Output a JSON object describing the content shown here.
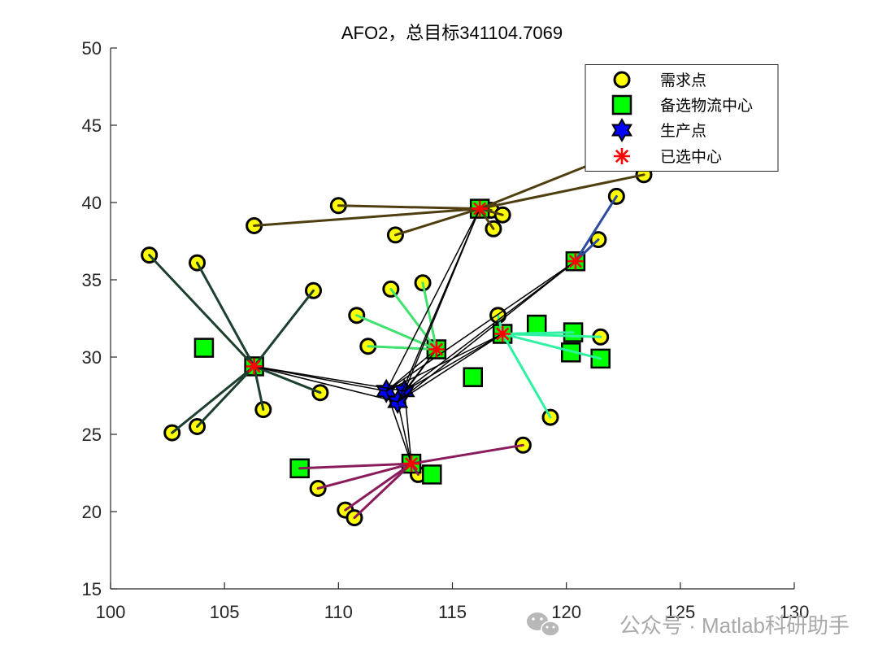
{
  "chart_data": {
    "type": "scatter",
    "title": "AFO2，总目标341104.7069",
    "xlim": [
      100,
      130
    ],
    "ylim": [
      15,
      50
    ],
    "xticks": [
      100,
      105,
      110,
      115,
      120,
      125,
      130
    ],
    "yticks": [
      15,
      20,
      25,
      30,
      35,
      40,
      45,
      50
    ],
    "grid": false,
    "box": false,
    "legend_position": "top-right",
    "axis_color": "#262626",
    "series": [
      {
        "name": "需求点",
        "marker": "circle",
        "color": "#ffff00",
        "edge_color": "#000000",
        "points": [
          [
            101.7,
            36.6
          ],
          [
            103.8,
            36.1
          ],
          [
            108.9,
            34.3
          ],
          [
            106.3,
            38.5
          ],
          [
            110.0,
            39.8
          ],
          [
            112.5,
            37.9
          ],
          [
            116.7,
            39.5
          ],
          [
            117.2,
            39.2
          ],
          [
            116.8,
            38.3
          ],
          [
            122.2,
            40.4
          ],
          [
            123.4,
            41.8
          ],
          [
            123.0,
            43.6
          ],
          [
            121.4,
            37.6
          ],
          [
            121.5,
            31.3
          ],
          [
            117.0,
            32.7
          ],
          [
            119.3,
            26.1
          ],
          [
            113.7,
            34.8
          ],
          [
            112.3,
            34.4
          ],
          [
            110.8,
            32.7
          ],
          [
            111.3,
            30.7
          ],
          [
            109.2,
            27.7
          ],
          [
            106.7,
            26.6
          ],
          [
            103.8,
            25.5
          ],
          [
            102.7,
            25.1
          ],
          [
            118.1,
            24.3
          ],
          [
            109.1,
            21.5
          ],
          [
            110.3,
            20.1
          ],
          [
            110.7,
            19.6
          ],
          [
            113.5,
            22.4
          ],
          [
            108.3,
            22.8
          ],
          [
            121.5,
            29.9
          ],
          [
            120.3,
            31.6
          ]
        ]
      },
      {
        "name": "备选物流中心",
        "marker": "square",
        "color": "#00ff00",
        "edge_color": "#000000",
        "points": [
          [
            104.1,
            30.6
          ],
          [
            106.3,
            29.4
          ],
          [
            108.3,
            22.8
          ],
          [
            113.2,
            23.1
          ],
          [
            114.1,
            22.4
          ],
          [
            114.3,
            30.5
          ],
          [
            115.9,
            28.7
          ],
          [
            116.2,
            39.6
          ],
          [
            117.2,
            31.5
          ],
          [
            118.7,
            32.1
          ],
          [
            120.3,
            31.6
          ],
          [
            120.2,
            30.3
          ],
          [
            121.5,
            29.9
          ],
          [
            120.4,
            36.2
          ]
        ]
      },
      {
        "name": "生产点",
        "marker": "hexagram",
        "color": "#0000ff",
        "edge_color": "#000000",
        "points": [
          [
            112.1,
            27.8
          ],
          [
            112.9,
            27.8
          ],
          [
            112.6,
            27.1
          ]
        ]
      },
      {
        "name": "已选中心",
        "marker": "asterisk",
        "color": "#ff0000",
        "points": [
          [
            106.3,
            29.4
          ],
          [
            113.2,
            23.1
          ],
          [
            114.3,
            30.5
          ],
          [
            116.2,
            39.6
          ],
          [
            117.2,
            31.5
          ],
          [
            120.4,
            36.2
          ]
        ]
      }
    ],
    "assignments": [
      {
        "center": [
          106.3,
          29.4
        ],
        "color": "#1d3f2e",
        "demands": [
          [
            101.7,
            36.6
          ],
          [
            103.8,
            36.1
          ],
          [
            108.9,
            34.3
          ],
          [
            109.2,
            27.7
          ],
          [
            106.7,
            26.6
          ],
          [
            103.8,
            25.5
          ],
          [
            102.7,
            25.1
          ]
        ]
      },
      {
        "center": [
          113.2,
          23.1
        ],
        "color": "#8a1c5c",
        "demands": [
          [
            118.1,
            24.3
          ],
          [
            109.1,
            21.5
          ],
          [
            110.3,
            20.1
          ],
          [
            110.7,
            19.6
          ],
          [
            113.5,
            22.4
          ],
          [
            108.3,
            22.8
          ]
        ]
      },
      {
        "center": [
          114.3,
          30.5
        ],
        "color": "#3fe26c",
        "demands": [
          [
            113.7,
            34.8
          ],
          [
            112.3,
            34.4
          ],
          [
            110.8,
            32.7
          ],
          [
            111.3,
            30.7
          ]
        ]
      },
      {
        "center": [
          116.2,
          39.6
        ],
        "color": "#4f3e10",
        "demands": [
          [
            106.3,
            38.5
          ],
          [
            110.0,
            39.8
          ],
          [
            112.5,
            37.9
          ],
          [
            116.7,
            39.5
          ],
          [
            117.2,
            39.2
          ],
          [
            116.8,
            38.3
          ],
          [
            123.4,
            41.8
          ],
          [
            123.0,
            43.6
          ]
        ]
      },
      {
        "center": [
          117.2,
          31.5
        ],
        "color": "#2ef2a2",
        "demands": [
          [
            117.0,
            32.7
          ],
          [
            121.5,
            31.3
          ],
          [
            121.5,
            29.9
          ],
          [
            120.3,
            31.6
          ],
          [
            119.3,
            26.1
          ]
        ]
      },
      {
        "center": [
          120.4,
          36.2
        ],
        "color": "#2d4a9e",
        "demands": [
          [
            122.2,
            40.4
          ],
          [
            121.4,
            37.6
          ]
        ]
      }
    ],
    "supply_routes": {
      "color": "#000000",
      "links": [
        [
          [
            112.1,
            27.8
          ],
          [
            106.3,
            29.4
          ]
        ],
        [
          [
            112.1,
            27.8
          ],
          [
            113.2,
            23.1
          ]
        ],
        [
          [
            112.1,
            27.8
          ],
          [
            114.3,
            30.5
          ]
        ],
        [
          [
            112.1,
            27.8
          ],
          [
            116.2,
            39.6
          ]
        ],
        [
          [
            112.1,
            27.8
          ],
          [
            117.2,
            31.5
          ]
        ],
        [
          [
            112.1,
            27.8
          ],
          [
            120.4,
            36.2
          ]
        ],
        [
          [
            112.9,
            27.8
          ],
          [
            106.3,
            29.4
          ]
        ],
        [
          [
            112.9,
            27.8
          ],
          [
            113.2,
            23.1
          ]
        ],
        [
          [
            112.9,
            27.8
          ],
          [
            114.3,
            30.5
          ]
        ],
        [
          [
            112.9,
            27.8
          ],
          [
            116.2,
            39.6
          ]
        ],
        [
          [
            112.9,
            27.8
          ],
          [
            117.2,
            31.5
          ]
        ],
        [
          [
            112.9,
            27.8
          ],
          [
            120.4,
            36.2
          ]
        ],
        [
          [
            112.6,
            27.1
          ],
          [
            106.3,
            29.4
          ]
        ],
        [
          [
            112.6,
            27.1
          ],
          [
            113.2,
            23.1
          ]
        ],
        [
          [
            112.6,
            27.1
          ],
          [
            114.3,
            30.5
          ]
        ],
        [
          [
            112.6,
            27.1
          ],
          [
            116.2,
            39.6
          ]
        ],
        [
          [
            112.6,
            27.1
          ],
          [
            117.2,
            31.5
          ]
        ],
        [
          [
            112.6,
            27.1
          ],
          [
            120.4,
            36.2
          ]
        ]
      ]
    }
  },
  "watermark": {
    "text": "公众号 · Matlab科研助手",
    "icon": "wechat-icon",
    "color": "#a9a9a9",
    "icon_color": "#b8b8b8"
  }
}
